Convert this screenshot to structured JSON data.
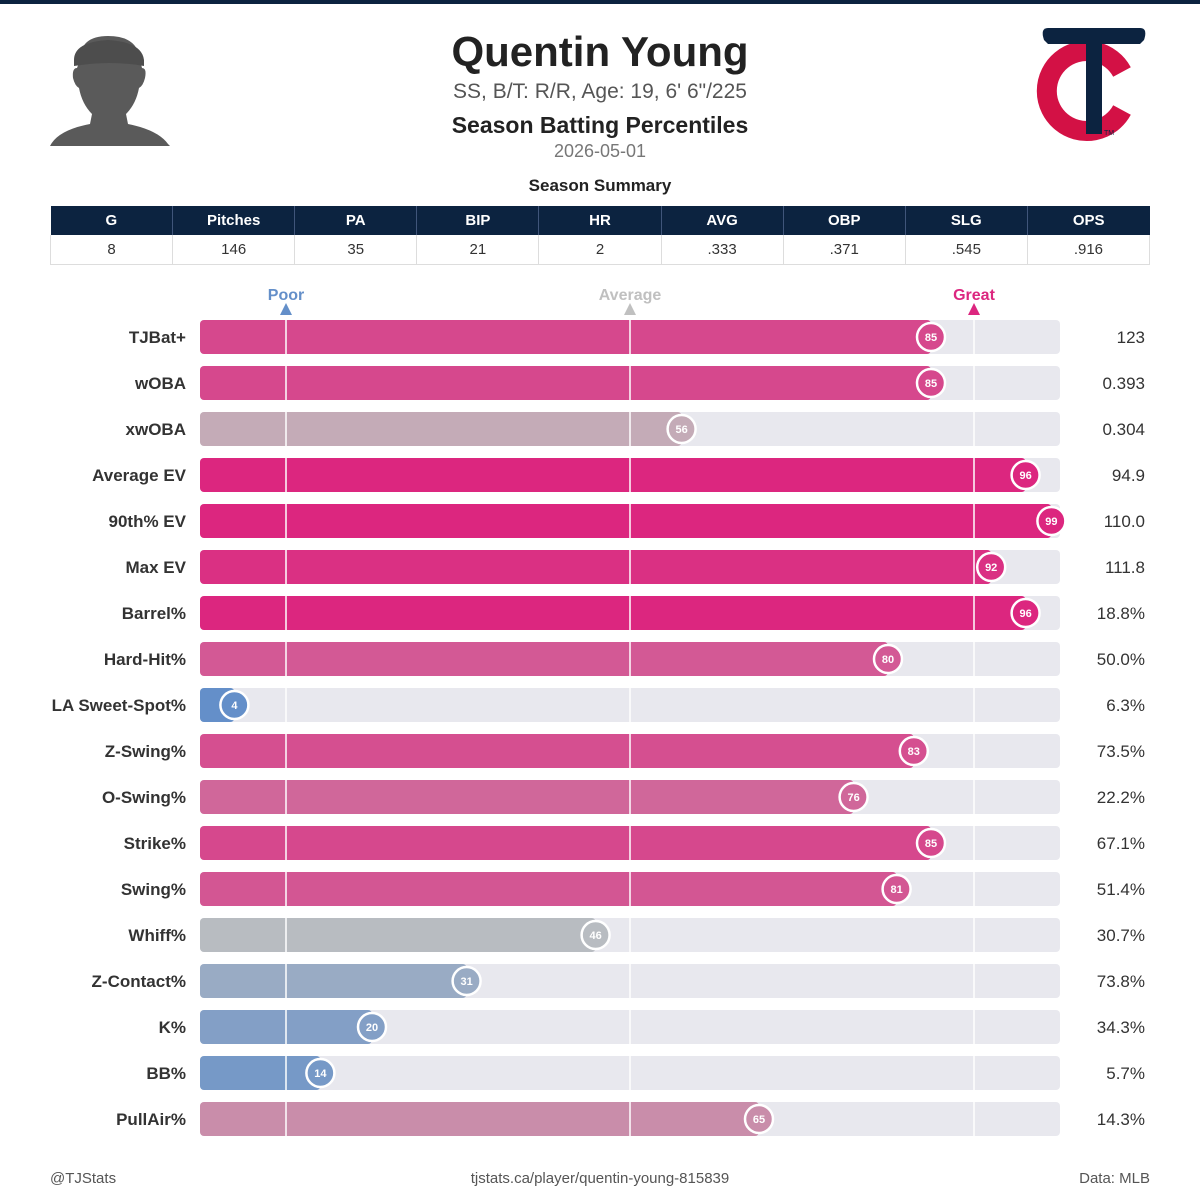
{
  "player": {
    "name": "Quentin Young",
    "bio": "SS, B/T: R/R, Age: 19, 6' 6\"/225"
  },
  "report": {
    "title": "Season Batting Percentiles",
    "date": "2026-05-01"
  },
  "summary": {
    "title": "Season Summary",
    "headers": [
      "G",
      "Pitches",
      "PA",
      "BIP",
      "HR",
      "AVG",
      "OBP",
      "SLG",
      "OPS"
    ],
    "values": [
      "8",
      "146",
      "35",
      "21",
      "2",
      ".333",
      ".371",
      ".545",
      ".916"
    ]
  },
  "colors": {
    "header_bg": "#0c2340",
    "great": "#dc267f",
    "poor": "#648fc9",
    "average": "#c0c0c0",
    "track": "#e8e8ee",
    "logo_red": "#d31145",
    "logo_navy": "#0c2340"
  },
  "chart_data": {
    "type": "bar",
    "orientation": "horizontal",
    "xlim": [
      0,
      100
    ],
    "reference_marks": [
      {
        "label": "Poor",
        "value": 10
      },
      {
        "label": "Average",
        "value": 50
      },
      {
        "label": "Great",
        "value": 90
      }
    ],
    "categories": [
      "TJBat+",
      "wOBA",
      "xwOBA",
      "Average EV",
      "90th% EV",
      "Max EV",
      "Barrel%",
      "Hard-Hit%",
      "LA Sweet-Spot%",
      "Z-Swing%",
      "O-Swing%",
      "Strike%",
      "Swing%",
      "Whiff%",
      "Z-Contact%",
      "K%",
      "BB%",
      "PullAir%"
    ],
    "percentiles": [
      85,
      85,
      56,
      96,
      99,
      92,
      96,
      80,
      4,
      83,
      76,
      85,
      81,
      46,
      31,
      20,
      14,
      65
    ],
    "stat_values": [
      "123",
      "0.393",
      "0.304",
      "94.9",
      "110.0",
      "111.8",
      "18.8%",
      "50.0%",
      "6.3%",
      "73.5%",
      "22.2%",
      "67.1%",
      "51.4%",
      "30.7%",
      "73.8%",
      "34.3%",
      "5.7%",
      "14.3%"
    ]
  },
  "footer": {
    "handle": "@TJStats",
    "url": "tjstats.ca/player/quentin-young-815839",
    "source": "Data: MLB"
  }
}
